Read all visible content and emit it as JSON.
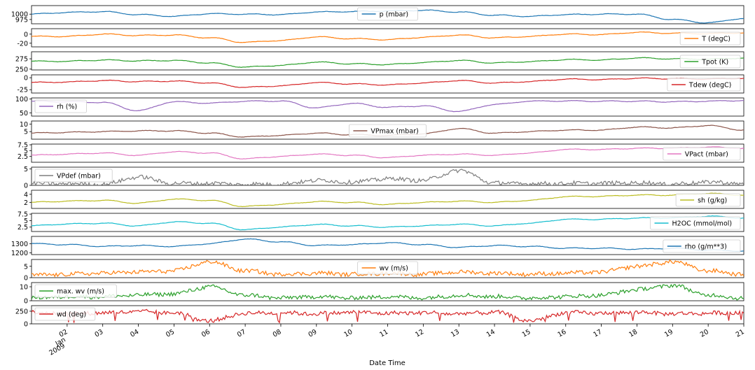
{
  "chart_data": {
    "type": "line",
    "xlabel": "Date Time",
    "x_range": [
      "2009-01-01",
      "2009-01-21"
    ],
    "x_tick_labels": [
      "02",
      "03",
      "04",
      "05",
      "06",
      "07",
      "08",
      "09",
      "10",
      "11",
      "12",
      "13",
      "14",
      "15",
      "16",
      "17",
      "18",
      "19",
      "20",
      "21"
    ],
    "x_tick_days": [
      2,
      3,
      4,
      5,
      6,
      7,
      8,
      9,
      10,
      11,
      12,
      13,
      14,
      15,
      16,
      17,
      18,
      19,
      20,
      21
    ],
    "x_sublabel": [
      "Jan",
      "2009"
    ],
    "grid": false,
    "shared_x": true,
    "panels": [
      {
        "name": "p (mbar)",
        "color": "#1f77b4",
        "legend": "top-center",
        "ylim": [
          955,
          1040
        ],
        "yticks": [
          975,
          1000
        ],
        "x": [
          1,
          2,
          3,
          4,
          5,
          6,
          7,
          8,
          9,
          10,
          11,
          12,
          13,
          14,
          15,
          16,
          17,
          18,
          19,
          20,
          21
        ],
        "y": [
          1000,
          1008,
          1012,
          998,
          990,
          1002,
          1000,
          998,
          1010,
          1012,
          1015,
          1018,
          1010,
          995,
          990,
          998,
          1000,
          1000,
          975,
          960,
          980
        ]
      },
      {
        "name": "T (degC)",
        "color": "#ff7f0e",
        "legend": "bottom-right",
        "ylim": [
          -28,
          12
        ],
        "yticks": [
          -20,
          0
        ],
        "x": [
          1,
          2,
          3,
          4,
          5,
          6,
          7,
          8,
          9,
          10,
          11,
          12,
          13,
          14,
          15,
          16,
          17,
          18,
          19,
          20,
          21
        ],
        "y": [
          -5,
          -5,
          0,
          -3,
          -2,
          -8,
          -18,
          -14,
          -6,
          -10,
          -12,
          -7,
          -2,
          -8,
          -5,
          0,
          -1,
          4,
          2,
          1,
          3
        ]
      },
      {
        "name": "Tpot (K)",
        "color": "#2ca02c",
        "legend": "bottom-right",
        "ylim": [
          248,
          292
        ],
        "yticks": [
          250,
          275
        ],
        "x": [
          1,
          2,
          3,
          4,
          5,
          6,
          7,
          8,
          9,
          10,
          11,
          12,
          13,
          14,
          15,
          16,
          17,
          18,
          19,
          20,
          21
        ],
        "y": [
          269,
          269,
          272,
          270,
          271,
          265,
          255,
          259,
          267,
          263,
          261,
          266,
          271,
          265,
          268,
          273,
          272,
          277,
          275,
          274,
          277
        ]
      },
      {
        "name": "Tdew (degC)",
        "color": "#d62728",
        "legend": "bottom-right",
        "ylim": [
          -32,
          6
        ],
        "yticks": [
          -25,
          0
        ],
        "x": [
          1,
          2,
          3,
          4,
          5,
          6,
          7,
          8,
          9,
          10,
          11,
          12,
          13,
          14,
          15,
          16,
          17,
          18,
          19,
          20,
          21
        ],
        "y": [
          -10,
          -9,
          -6,
          -8,
          -7,
          -11,
          -20,
          -17,
          -10,
          -13,
          -15,
          -11,
          -6,
          -11,
          -8,
          -3,
          -4,
          -1,
          -2,
          -3,
          -1
        ]
      },
      {
        "name": "rh (%)",
        "color": "#9467bd",
        "legend": "top-left",
        "ylim": [
          38,
          104
        ],
        "yticks": [
          50,
          100
        ],
        "x": [
          1,
          2,
          3,
          4,
          5,
          6,
          7,
          8,
          9,
          10,
          11,
          12,
          13,
          14,
          15,
          16,
          17,
          18,
          19,
          20,
          21
        ],
        "y": [
          92,
          90,
          88,
          58,
          90,
          85,
          92,
          93,
          68,
          84,
          70,
          75,
          55,
          80,
          92,
          93,
          92,
          92,
          90,
          92,
          95
        ]
      },
      {
        "name": "VPmax (mbar)",
        "color": "#8c564b",
        "legend": "bottom-center",
        "ylim": [
          0,
          12
        ],
        "yticks": [
          5,
          10
        ],
        "x": [
          1,
          2,
          3,
          4,
          5,
          6,
          7,
          8,
          9,
          10,
          11,
          12,
          13,
          14,
          15,
          16,
          17,
          18,
          19,
          20,
          21
        ],
        "y": [
          4,
          4.5,
          5,
          5.5,
          5.5,
          4,
          1.5,
          2.5,
          4,
          3,
          2.5,
          3.5,
          7,
          4,
          5,
          6,
          6,
          8,
          7.5,
          9,
          6
        ]
      },
      {
        "name": "VPact (mbar)",
        "color": "#e377c2",
        "legend": "bottom-right",
        "ylim": [
          0,
          7.8
        ],
        "yticks": [
          2.5,
          5.0,
          7.5
        ],
        "x": [
          1,
          2,
          3,
          4,
          5,
          6,
          7,
          8,
          9,
          10,
          11,
          12,
          13,
          14,
          15,
          16,
          17,
          18,
          19,
          20,
          21
        ],
        "y": [
          3,
          3.5,
          4,
          3,
          4.5,
          4,
          1.5,
          2.5,
          3.5,
          3,
          2,
          3,
          3.5,
          3,
          4,
          5.5,
          5.5,
          6,
          6,
          6.5,
          6
        ]
      },
      {
        "name": "VPdef (mbar)",
        "color": "#7f7f7f",
        "legend": "top-left",
        "ylim": [
          0,
          5.5
        ],
        "yticks": [
          0,
          5
        ],
        "x": [
          1,
          2,
          3,
          4,
          5,
          6,
          7,
          8,
          9,
          10,
          11,
          12,
          13,
          14,
          15,
          16,
          17,
          18,
          19,
          20,
          21
        ],
        "y": [
          0.5,
          0.5,
          0.3,
          2.5,
          0.6,
          0.6,
          0.3,
          0.4,
          1.5,
          1,
          2,
          1.5,
          4.5,
          0.7,
          0.5,
          0.6,
          0.6,
          0.8,
          0.4,
          1,
          0.5
        ]
      },
      {
        "name": "sh (g/kg)",
        "color": "#bcbd22",
        "legend": "bottom-right",
        "ylim": [
          0.5,
          5
        ],
        "yticks": [
          2,
          4
        ],
        "x": [
          1,
          2,
          3,
          4,
          5,
          6,
          7,
          8,
          9,
          10,
          11,
          12,
          13,
          14,
          15,
          16,
          17,
          18,
          19,
          20,
          21
        ],
        "y": [
          2,
          2.3,
          2.5,
          1.8,
          2.8,
          2.5,
          1,
          1.5,
          2.2,
          2,
          1.5,
          2,
          2.3,
          2,
          2.5,
          3.4,
          3.5,
          3.8,
          3.8,
          4.2,
          3.8
        ]
      },
      {
        "name": "H2OC (mmol/mol)",
        "color": "#17becf",
        "legend": "bottom-right",
        "ylim": [
          0.8,
          7.8
        ],
        "yticks": [
          2.5,
          5.0,
          7.5
        ],
        "x": [
          1,
          2,
          3,
          4,
          5,
          6,
          7,
          8,
          9,
          10,
          11,
          12,
          13,
          14,
          15,
          16,
          17,
          18,
          19,
          20,
          21
        ],
        "y": [
          3,
          3.7,
          4,
          3,
          4.5,
          4,
          1.5,
          2.5,
          3.5,
          3,
          2.5,
          3,
          3.6,
          3,
          4,
          5.5,
          5.5,
          6,
          6,
          6.7,
          6
        ]
      },
      {
        "name": "rho (g/m**3)",
        "color": "#1f77b4",
        "legend": "bottom-right",
        "ylim": [
          1180,
          1380
        ],
        "yticks": [
          1200,
          1300
        ],
        "x": [
          1,
          2,
          3,
          4,
          5,
          6,
          7,
          8,
          9,
          10,
          11,
          12,
          13,
          14,
          15,
          16,
          17,
          18,
          19,
          20,
          21
        ],
        "y": [
          1300,
          1290,
          1270,
          1280,
          1270,
          1300,
          1350,
          1320,
          1280,
          1290,
          1310,
          1290,
          1260,
          1280,
          1270,
          1250,
          1250,
          1240,
          1250,
          1230,
          1220
        ]
      },
      {
        "name": "wv (m/s)",
        "color": "#ff7f0e",
        "legend": "top-center",
        "ylim": [
          0,
          8
        ],
        "yticks": [
          0,
          5
        ],
        "x": [
          1,
          2,
          3,
          4,
          5,
          6,
          7,
          8,
          9,
          10,
          11,
          12,
          13,
          14,
          15,
          16,
          17,
          18,
          19,
          20,
          21
        ],
        "y": [
          1,
          1.5,
          2,
          2.5,
          3,
          7,
          3,
          1.5,
          2,
          1.5,
          2,
          1.5,
          2.5,
          2,
          1.5,
          2,
          2.5,
          5,
          7,
          3,
          1.5
        ]
      },
      {
        "name": "max. wv (m/s)",
        "color": "#2ca02c",
        "legend": "top-left",
        "ylim": [
          0,
          13
        ],
        "yticks": [
          0,
          10
        ],
        "x": [
          1,
          2,
          3,
          4,
          5,
          6,
          7,
          8,
          9,
          10,
          11,
          12,
          13,
          14,
          15,
          16,
          17,
          18,
          19,
          20,
          21
        ],
        "y": [
          2,
          3,
          3,
          4,
          5,
          10,
          4,
          2,
          3,
          2,
          3,
          2,
          4,
          3,
          2,
          3,
          4,
          8,
          11,
          4,
          2
        ]
      },
      {
        "name": "wd (deg)",
        "color": "#d62728",
        "legend": "top-left",
        "ylim": [
          0,
          360
        ],
        "yticks": [
          0,
          250
        ],
        "x": [
          1,
          2,
          3,
          4,
          5,
          6,
          7,
          8,
          9,
          10,
          11,
          12,
          13,
          14,
          15,
          16,
          17,
          18,
          19,
          20,
          21
        ],
        "y": [
          230,
          200,
          220,
          240,
          220,
          60,
          210,
          220,
          200,
          230,
          210,
          220,
          200,
          230,
          60,
          220,
          210,
          230,
          200,
          210,
          220
        ]
      }
    ]
  }
}
